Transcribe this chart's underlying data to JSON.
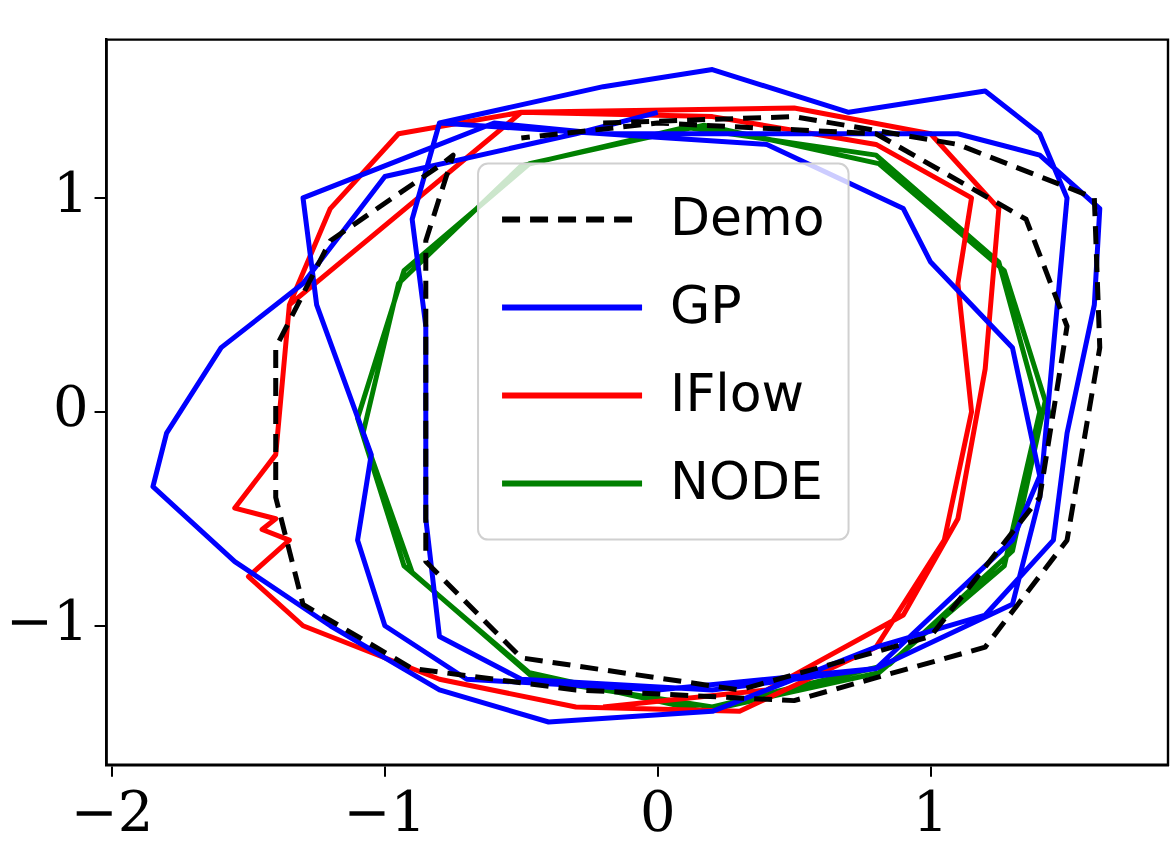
{
  "chart_data": {
    "type": "line",
    "xlim": [
      -2.02,
      1.87
    ],
    "ylim": [
      -1.65,
      1.74
    ],
    "xticks": [
      {
        "value": -2,
        "label": "−2"
      },
      {
        "value": -1,
        "label": "−1"
      },
      0,
      1
    ],
    "yticks": [
      {
        "value": -1,
        "label": "−1"
      },
      0,
      1
    ],
    "grid": false,
    "legend": "top",
    "marker": "none",
    "series": [
      {
        "name": "Demo",
        "color": "#000000",
        "line_style": "dashed",
        "x": [
          -0.2,
          0.5,
          1.1,
          1.6,
          1.62,
          1.5,
          1.2,
          0.5,
          -0.3,
          -0.9,
          -1.3,
          -1.4,
          -1.4,
          -1.2,
          -0.8,
          -0.75,
          -0.85,
          -0.85,
          -0.5,
          0.3,
          1.0,
          1.4,
          1.5,
          1.35,
          0.8,
          0,
          -0.5
        ],
        "values": [
          1.35,
          1.38,
          1.25,
          1.0,
          0.3,
          -0.6,
          -1.1,
          -1.35,
          -1.3,
          -1.2,
          -0.9,
          -0.4,
          0.3,
          0.8,
          1.15,
          1.2,
          0.8,
          -0.7,
          -1.15,
          -1.3,
          -1.05,
          -0.4,
          0.4,
          0.9,
          1.3,
          1.35,
          1.28
        ]
      },
      {
        "name": "GP",
        "color": "#0000ff",
        "line_style": "solid",
        "x": [
          0,
          -0.3,
          -1.0,
          -1.3,
          -1.6,
          -1.8,
          -1.85,
          -1.55,
          -1.2,
          -0.8,
          -0.4,
          0.2,
          0.8,
          1.2,
          1.45,
          1.5,
          1.6,
          1.62,
          1.4,
          1.1,
          0.5,
          -0.2,
          -0.6,
          -0.9,
          -1.3,
          -1.25,
          -1.05,
          -1.1,
          -1.0,
          -0.7,
          0,
          0.8,
          1.3,
          1.4,
          1.3,
          1.0,
          0.9,
          0.4,
          -0.2,
          -0.8,
          -0.2,
          0.2,
          0.7,
          1.2,
          1.4,
          1.5,
          1.45,
          1.4,
          1.3,
          0.8,
          0.2,
          -0.5,
          -0.8,
          -0.85,
          -0.85,
          -0.9,
          -0.8
        ],
        "values": [
          1.4,
          1.3,
          1.1,
          0.6,
          0.3,
          -0.1,
          -0.35,
          -0.7,
          -1.0,
          -1.3,
          -1.45,
          -1.4,
          -1.1,
          -0.95,
          -0.6,
          -0.1,
          0.5,
          0.95,
          1.2,
          1.3,
          1.3,
          1.3,
          1.35,
          1.2,
          1.0,
          0.5,
          -0.2,
          -0.6,
          -1.0,
          -1.25,
          -1.3,
          -1.2,
          -0.6,
          -0.3,
          0.3,
          0.7,
          0.95,
          1.25,
          1.3,
          1.35,
          1.52,
          1.6,
          1.4,
          1.5,
          1.3,
          1.0,
          0.3,
          -0.4,
          -0.9,
          -1.2,
          -1.3,
          -1.25,
          -1.05,
          -0.5,
          0.4,
          0.9,
          1.35
        ]
      },
      {
        "name": "IFlow",
        "color": "#ff0000",
        "line_style": "solid",
        "x": [
          -1.35,
          -1.4,
          -1.55,
          -1.4,
          -1.45,
          -1.35,
          -1.5,
          -1.3,
          -0.8,
          -0.3,
          0.3,
          0.8,
          1.05,
          1.15,
          1.1,
          1.15,
          0.8,
          0.2,
          -0.5,
          -0.95,
          -1.2,
          -1.35,
          -0.5,
          0.5,
          1.0,
          1.25,
          1.2,
          1.1,
          0.9,
          0.4,
          -0.2
        ],
        "values": [
          0.5,
          -0.2,
          -0.45,
          -0.5,
          -0.55,
          -0.6,
          -0.77,
          -1.0,
          -1.25,
          -1.38,
          -1.4,
          -1.1,
          -0.6,
          0.0,
          0.6,
          1.0,
          1.25,
          1.38,
          1.4,
          1.3,
          0.95,
          0.5,
          1.4,
          1.42,
          1.3,
          0.95,
          0.2,
          -0.5,
          -0.95,
          -1.3,
          -1.38
        ]
      },
      {
        "name": "NODE",
        "color": "#008000",
        "line_style": "solid",
        "x": [
          1.44,
          1.27,
          0.81,
          0.17,
          -0.47,
          -0.93,
          -1.1,
          -0.93,
          -0.47,
          0.17,
          0.81,
          1.27,
          1.4,
          1.25,
          0.8,
          0.1,
          -0.5,
          -0.95,
          -1.08,
          -0.9,
          -0.45,
          0.2,
          0.85,
          1.3,
          1.42
        ],
        "values": [
          -0.03,
          0.66,
          1.16,
          1.34,
          1.16,
          0.66,
          -0.03,
          -0.72,
          -1.22,
          -1.4,
          -1.22,
          -0.72,
          0.0,
          0.7,
          1.2,
          1.33,
          1.15,
          0.6,
          -0.1,
          -0.75,
          -1.25,
          -1.38,
          -1.18,
          -0.65,
          0.05
        ]
      }
    ]
  }
}
